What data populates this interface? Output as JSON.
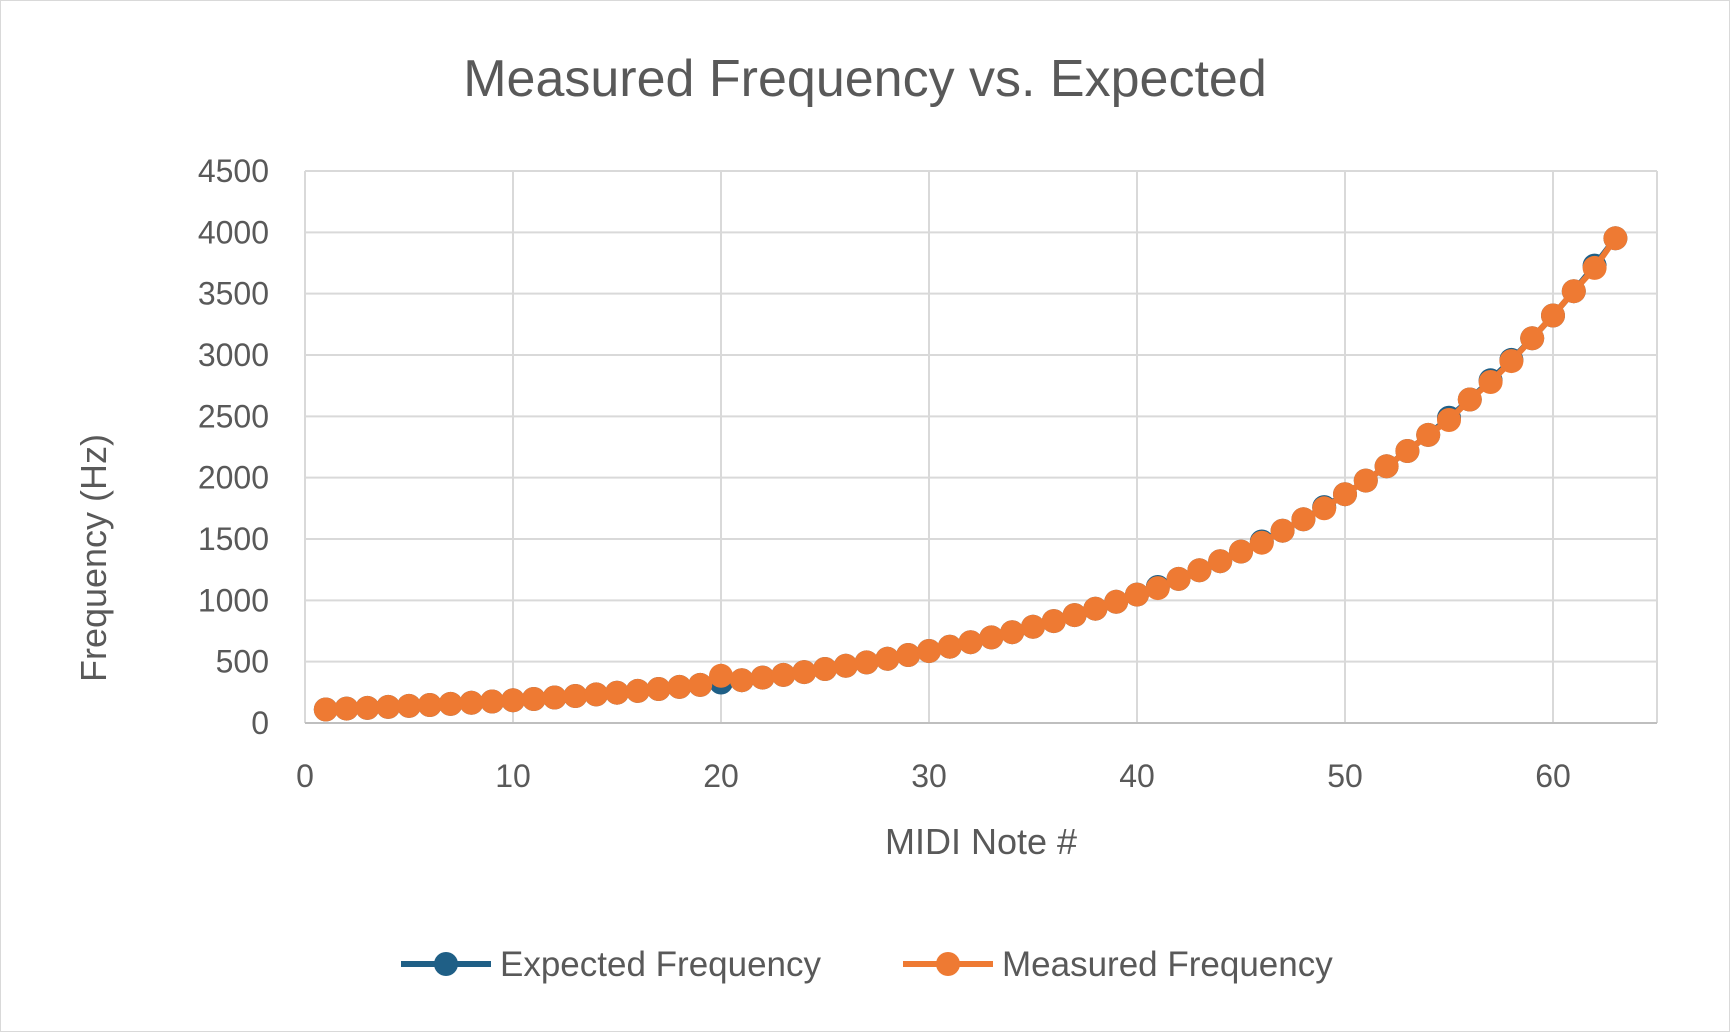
{
  "chart_data": {
    "type": "line",
    "title": "Measured Frequency vs. Expected",
    "xlabel": "MIDI Note #",
    "ylabel": "Frequency (Hz)",
    "xlim": [
      0,
      65
    ],
    "ylim": [
      0,
      4500
    ],
    "xticks": [
      0,
      10,
      20,
      30,
      40,
      50,
      60
    ],
    "yticks": [
      0,
      500,
      1000,
      1500,
      2000,
      2500,
      3000,
      3500,
      4000,
      4500
    ],
    "grid": true,
    "legend_position": "bottom",
    "colors": {
      "expected": "#1f5f86",
      "measured": "#ee7a33",
      "grid": "#d9d9d9",
      "text": "#595959"
    },
    "series": [
      {
        "name": "Expected Frequency",
        "marker": "circle",
        "x": [
          1,
          2,
          3,
          4,
          5,
          6,
          7,
          8,
          9,
          10,
          11,
          12,
          13,
          14,
          15,
          16,
          17,
          18,
          19,
          20,
          21,
          22,
          23,
          24,
          25,
          26,
          27,
          28,
          29,
          30,
          31,
          32,
          33,
          34,
          35,
          36,
          37,
          38,
          39,
          40,
          41,
          42,
          43,
          44,
          45,
          46,
          47,
          48,
          49,
          50,
          51,
          52,
          53,
          54,
          55,
          56,
          57,
          58,
          59,
          60,
          61,
          62,
          63
        ],
        "values": [
          110,
          117,
          123,
          131,
          139,
          147,
          156,
          165,
          175,
          185,
          196,
          208,
          220,
          233,
          247,
          262,
          277,
          294,
          311,
          330,
          349,
          370,
          392,
          415,
          440,
          466,
          494,
          523,
          554,
          587,
          622,
          659,
          698,
          740,
          784,
          831,
          880,
          932,
          988,
          1047,
          1109,
          1175,
          1245,
          1319,
          1397,
          1480,
          1568,
          1661,
          1760,
          1865,
          1976,
          2093,
          2217,
          2349,
          2489,
          2637,
          2794,
          2960,
          3136,
          3322,
          3520,
          3729,
          3951
        ]
      },
      {
        "name": "Measured Frequency",
        "marker": "circle",
        "x": [
          1,
          2,
          3,
          4,
          5,
          6,
          7,
          8,
          9,
          10,
          11,
          12,
          13,
          14,
          15,
          16,
          17,
          18,
          19,
          20,
          21,
          22,
          23,
          24,
          25,
          26,
          27,
          28,
          29,
          30,
          31,
          32,
          33,
          34,
          35,
          36,
          37,
          38,
          39,
          40,
          41,
          42,
          43,
          44,
          45,
          46,
          47,
          48,
          49,
          50,
          51,
          52,
          53,
          54,
          55,
          56,
          57,
          58,
          59,
          60,
          61,
          62,
          63
        ],
        "values": [
          110,
          117,
          123,
          131,
          139,
          147,
          156,
          165,
          175,
          185,
          196,
          208,
          220,
          233,
          247,
          262,
          277,
          294,
          311,
          385,
          349,
          370,
          392,
          415,
          440,
          466,
          494,
          523,
          554,
          587,
          622,
          659,
          698,
          740,
          784,
          831,
          880,
          932,
          988,
          1047,
          1100,
          1175,
          1245,
          1319,
          1397,
          1470,
          1568,
          1661,
          1750,
          1865,
          1976,
          2093,
          2217,
          2349,
          2470,
          2637,
          2780,
          2950,
          3136,
          3322,
          3520,
          3710,
          3951
        ]
      }
    ]
  }
}
